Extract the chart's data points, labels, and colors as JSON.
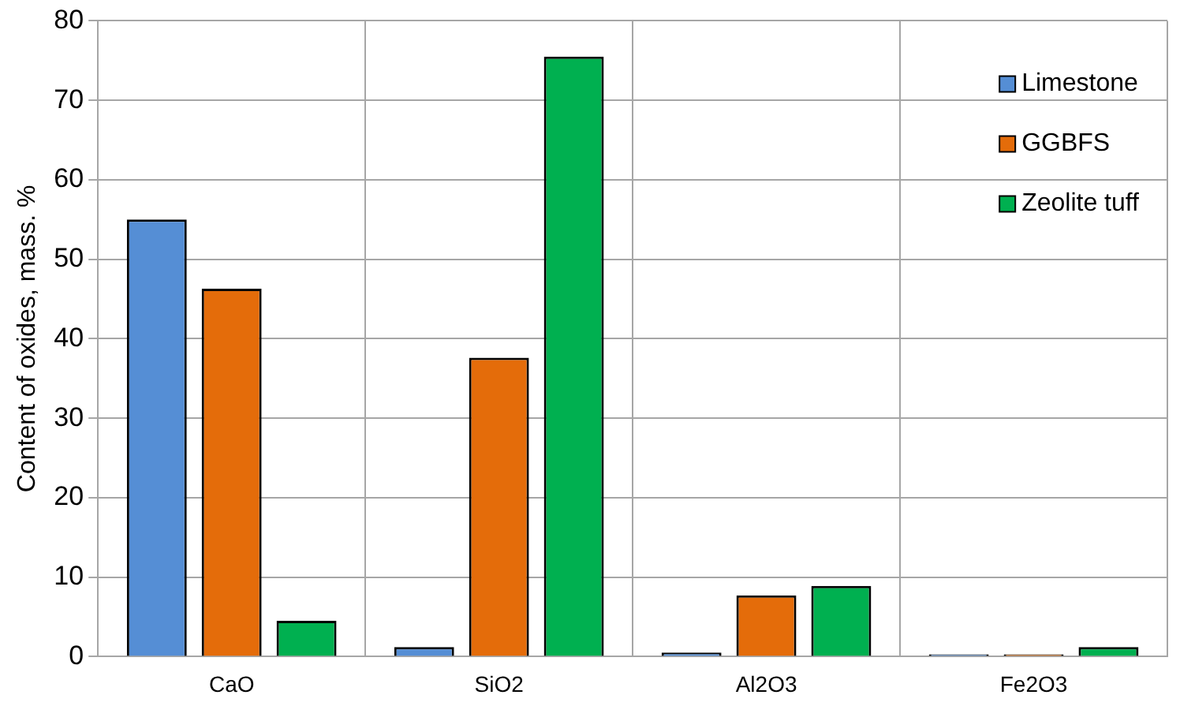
{
  "chart_data": {
    "type": "bar",
    "ylabel": "Content of oxides, mass. %",
    "categories": [
      "CaO",
      "SiO2",
      "Al2O3",
      "Fe2O3"
    ],
    "series": [
      {
        "name": "Limestone",
        "color": "#558ed5",
        "values": [
          55,
          1.2,
          0.5,
          0.3
        ]
      },
      {
        "name": "GGBFS",
        "color": "#e46c0a",
        "values": [
          46.3,
          37.6,
          7.7,
          0.3
        ]
      },
      {
        "name": "Zeolite tuff",
        "color": "#00b050",
        "values": [
          4.5,
          75.5,
          8.9,
          1.2
        ]
      }
    ],
    "ylim": [
      0,
      80
    ],
    "yticks": [
      0,
      10,
      20,
      30,
      40,
      50,
      60,
      70,
      80
    ],
    "grid": true,
    "legend": "top right"
  }
}
